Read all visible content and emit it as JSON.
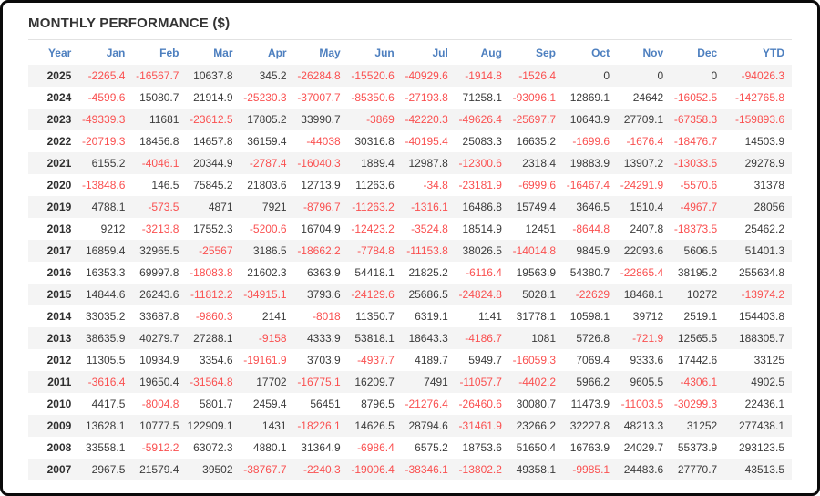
{
  "title": "MONTHLY PERFORMANCE ($)",
  "colors": {
    "frame_border": "#0a0a0a",
    "header_text": "#4d7fbf",
    "negative_value": "#fa5050",
    "positive_value": "#3b3b3b",
    "row_stripe": "#f4f4f4",
    "title_rule": "#e2e2e2"
  },
  "chart_data": {
    "type": "table",
    "title": "MONTHLY PERFORMANCE ($)",
    "columns": [
      "Year",
      "Jan",
      "Feb",
      "Mar",
      "Apr",
      "May",
      "Jun",
      "Jul",
      "Aug",
      "Sep",
      "Oct",
      "Nov",
      "Dec",
      "YTD"
    ],
    "rows": [
      {
        "year": "2025",
        "values": [
          -2265.4,
          -16567.7,
          10637.8,
          345.2,
          -26284.8,
          -15520.6,
          -40929.6,
          -1914.8,
          -1526.4,
          0,
          0,
          0,
          -94026.3
        ]
      },
      {
        "year": "2024",
        "values": [
          -4599.6,
          15080.7,
          21914.9,
          -25230.3,
          -37007.7,
          -85350.6,
          -27193.8,
          71258.1,
          -93096.1,
          12869.1,
          24642,
          -16052.5,
          -142765.8
        ]
      },
      {
        "year": "2023",
        "values": [
          -49339.3,
          11681,
          -23612.5,
          17805.2,
          33990.7,
          -3869,
          -42220.3,
          -49626.4,
          -25697.7,
          10643.9,
          27709.1,
          -67358.3,
          -159893.6
        ]
      },
      {
        "year": "2022",
        "values": [
          -20719.3,
          18456.8,
          14657.8,
          36159.4,
          -44038,
          30316.8,
          -40195.4,
          25083.3,
          16635.2,
          -1699.6,
          -1676.4,
          -18476.7,
          14503.9
        ]
      },
      {
        "year": "2021",
        "values": [
          6155.2,
          -4046.1,
          20344.9,
          -2787.4,
          -16040.3,
          1889.4,
          12987.8,
          -12300.6,
          2318.4,
          19883.9,
          13907.2,
          -13033.5,
          29278.9
        ]
      },
      {
        "year": "2020",
        "values": [
          -13848.6,
          146.5,
          75845.2,
          21803.6,
          12713.9,
          11263.6,
          -34.8,
          -23181.9,
          -6999.6,
          -16467.4,
          -24291.9,
          -5570.6,
          31378
        ]
      },
      {
        "year": "2019",
        "values": [
          4788.1,
          -573.5,
          4871,
          7921,
          -8796.7,
          -11263.2,
          -1316.1,
          16486.8,
          15749.4,
          3646.5,
          1510.4,
          -4967.7,
          28056
        ]
      },
      {
        "year": "2018",
        "values": [
          9212,
          -3213.8,
          17552.3,
          -5200.6,
          16704.9,
          -12423.2,
          -3524.8,
          18514.9,
          12451,
          -8644.8,
          2407.8,
          -18373.5,
          25462.2
        ]
      },
      {
        "year": "2017",
        "values": [
          16859.4,
          32965.5,
          -25567,
          3186.5,
          -18662.2,
          -7784.8,
          -11153.8,
          38026.5,
          -14014.8,
          9845.9,
          22093.6,
          5606.5,
          51401.3
        ]
      },
      {
        "year": "2016",
        "values": [
          16353.3,
          69997.8,
          -18083.8,
          21602.3,
          6363.9,
          54418.1,
          21825.2,
          -6116.4,
          19563.9,
          54380.7,
          -22865.4,
          38195.2,
          255634.8
        ]
      },
      {
        "year": "2015",
        "values": [
          14844.6,
          26243.6,
          -11812.2,
          -34915.1,
          3793.6,
          -24129.6,
          25686.5,
          -24824.8,
          5028.1,
          -22629,
          18468.1,
          10272,
          -13974.2
        ]
      },
      {
        "year": "2014",
        "values": [
          33035.2,
          33687.8,
          -9860.3,
          2141,
          -8018,
          11350.7,
          6319.1,
          1141,
          31778.1,
          10598.1,
          39712,
          2519.1,
          154403.8
        ]
      },
      {
        "year": "2013",
        "values": [
          38635.9,
          40279.7,
          27288.1,
          -9158,
          4333.9,
          53818.1,
          18643.3,
          -4186.7,
          1081,
          5726.8,
          -721.9,
          12565.5,
          188305.7
        ]
      },
      {
        "year": "2012",
        "values": [
          11305.5,
          10934.9,
          3354.6,
          -19161.9,
          3703.9,
          -4937.7,
          4189.7,
          5949.7,
          -16059.3,
          7069.4,
          9333.6,
          17442.6,
          33125
        ]
      },
      {
        "year": "2011",
        "values": [
          -3616.4,
          19650.4,
          -31564.8,
          17702,
          -16775.1,
          16209.7,
          7491,
          -11057.7,
          -4402.2,
          5966.2,
          9605.5,
          -4306.1,
          4902.5
        ]
      },
      {
        "year": "2010",
        "values": [
          4417.5,
          -8004.8,
          5801.7,
          2459.4,
          56451,
          8796.5,
          -21276.4,
          -26460.6,
          30080.7,
          11473.9,
          -11003.5,
          -30299.3,
          22436.1
        ]
      },
      {
        "year": "2009",
        "values": [
          13628.1,
          10777.5,
          122909.1,
          1431,
          -18226.1,
          14626.5,
          28794.6,
          -31461.9,
          23266.2,
          32227.8,
          48213.3,
          31252,
          277438.1
        ]
      },
      {
        "year": "2008",
        "values": [
          33558.1,
          -5912.2,
          63072.3,
          4880.1,
          31364.9,
          -6986.4,
          6575.2,
          18753.6,
          51650.4,
          16763.9,
          24029.7,
          55373.9,
          293123.5
        ]
      },
      {
        "year": "2007",
        "values": [
          2967.5,
          21579.4,
          39502,
          -38767.7,
          -2240.3,
          -19006.4,
          -38346.1,
          -13802.2,
          49358.1,
          -9985.1,
          24483.6,
          27770.7,
          43513.5
        ]
      }
    ]
  }
}
